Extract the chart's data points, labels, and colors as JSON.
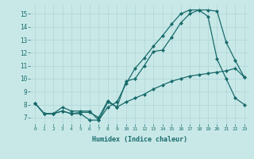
{
  "xlabel": "Humidex (Indice chaleur)",
  "bg_color": "#c8e8e8",
  "line_color": "#1a6b6b",
  "grid_color": "#b0d4d4",
  "xlim": [
    -0.5,
    23.5
  ],
  "ylim": [
    6.5,
    15.7
  ],
  "yticks": [
    7,
    8,
    9,
    10,
    11,
    12,
    13,
    14,
    15
  ],
  "xticks": [
    0,
    1,
    2,
    3,
    4,
    5,
    6,
    7,
    8,
    9,
    10,
    11,
    12,
    13,
    14,
    15,
    16,
    17,
    18,
    19,
    20,
    21,
    22,
    23
  ],
  "line1_x": [
    0,
    1,
    2,
    3,
    4,
    5,
    6,
    7,
    8,
    9,
    10,
    11,
    12,
    13,
    14,
    15,
    16,
    17,
    18,
    19,
    20,
    21,
    22,
    23
  ],
  "line1_y": [
    8.1,
    7.3,
    7.3,
    7.5,
    7.3,
    7.4,
    7.4,
    7.0,
    8.3,
    7.8,
    9.8,
    10.0,
    11.0,
    12.1,
    12.2,
    13.2,
    14.3,
    15.0,
    15.3,
    15.3,
    15.2,
    12.8,
    11.4,
    10.1
  ],
  "line2_x": [
    0,
    1,
    2,
    3,
    4,
    5,
    6,
    7,
    8,
    9,
    10,
    11,
    12,
    13,
    14,
    15,
    16,
    17,
    18,
    19,
    20,
    21,
    22,
    23
  ],
  "line2_y": [
    8.1,
    7.3,
    7.3,
    7.8,
    7.5,
    7.5,
    7.5,
    6.8,
    7.8,
    8.2,
    9.6,
    10.8,
    11.6,
    12.5,
    13.3,
    14.2,
    15.0,
    15.3,
    15.3,
    14.8,
    11.5,
    10.0,
    8.5,
    8.0
  ],
  "line3_x": [
    0,
    1,
    2,
    3,
    4,
    5,
    6,
    7,
    8,
    9,
    10,
    11,
    12,
    13,
    14,
    15,
    16,
    17,
    18,
    19,
    20,
    21,
    22,
    23
  ],
  "line3_y": [
    8.1,
    7.3,
    7.3,
    7.5,
    7.3,
    7.3,
    6.8,
    6.8,
    8.2,
    7.8,
    8.2,
    8.5,
    8.8,
    9.2,
    9.5,
    9.8,
    10.0,
    10.2,
    10.3,
    10.4,
    10.5,
    10.6,
    10.8,
    10.1
  ]
}
